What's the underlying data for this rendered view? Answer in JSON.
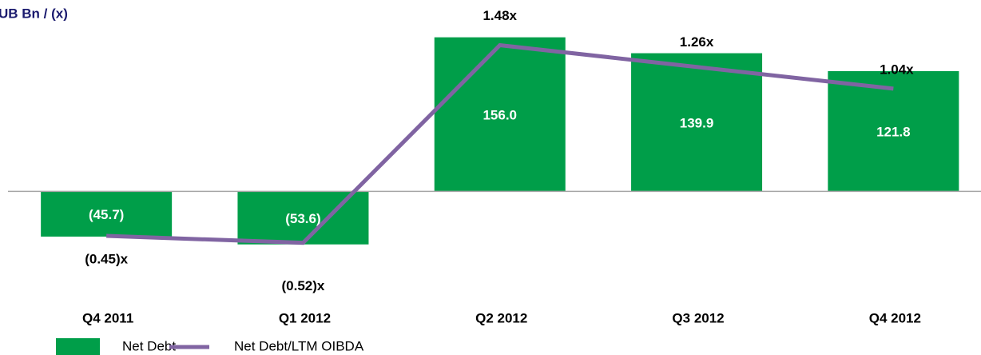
{
  "chart_data": {
    "type": "bar_line",
    "title": "UB Bn / (x)",
    "categories": [
      "Q4 2011",
      "Q1 2012",
      "Q2 2012",
      "Q3 2012",
      "Q4 2012"
    ],
    "series": [
      {
        "name": "Net Debt",
        "type": "bar",
        "color": "#009e49",
        "values": [
          -45.7,
          -53.6,
          156.0,
          139.9,
          121.8
        ],
        "value_labels": [
          "(45.7)",
          "(53.6)",
          "156.0",
          "139.9",
          "121.8"
        ]
      },
      {
        "name": "Net Debt/LTM OIBDA",
        "type": "line",
        "axis": "y2",
        "color": "#8064a2",
        "values": [
          -0.45,
          -0.52,
          1.48,
          1.26,
          1.04
        ],
        "value_labels": [
          "(0.45)x",
          "(0.52)x",
          "1.48x",
          "1.26x",
          "1.04x"
        ]
      }
    ],
    "ylim": [
      -100,
      180
    ],
    "y2lim": [
      -1,
      1.8
    ]
  }
}
